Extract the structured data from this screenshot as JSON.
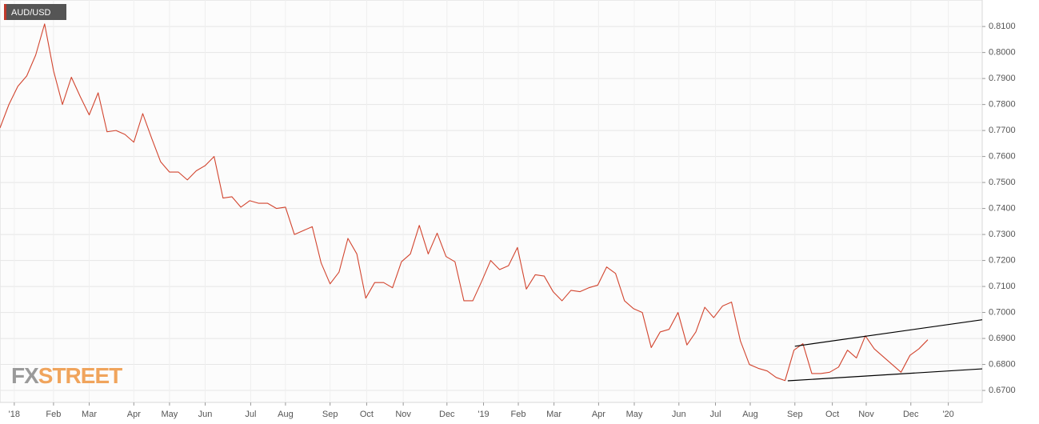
{
  "chart_data": {
    "type": "line",
    "x": [
      0,
      1,
      2,
      3,
      4,
      5,
      6,
      7,
      8,
      9,
      10,
      11,
      12,
      13,
      14,
      15,
      16,
      17,
      18,
      19,
      20,
      21,
      22,
      23,
      24,
      25,
      26,
      27,
      28,
      29,
      30,
      31,
      32,
      33,
      34,
      35,
      36,
      37,
      38,
      39,
      40,
      41,
      42,
      43,
      44,
      45,
      46,
      47,
      48,
      49,
      50,
      51,
      52,
      53,
      54,
      55,
      56,
      57,
      58,
      59,
      60,
      61,
      62,
      63,
      64,
      65,
      66,
      67,
      68,
      69,
      70,
      71,
      72,
      73,
      74,
      75,
      76,
      77,
      78,
      79,
      80,
      81,
      82,
      83,
      84,
      85,
      86,
      87,
      88,
      89,
      90,
      91,
      92,
      93,
      94,
      95,
      96,
      97,
      98,
      99,
      100,
      101,
      102,
      103,
      104
    ],
    "series": [
      {
        "name": "AUD/USD",
        "color": "#d2452f",
        "values": [
          0.771,
          0.78,
          0.787,
          0.791,
          0.799,
          0.811,
          0.793,
          0.78,
          0.7905,
          0.783,
          0.776,
          0.7845,
          0.7695,
          0.77,
          0.7685,
          0.7655,
          0.7765,
          0.767,
          0.758,
          0.754,
          0.754,
          0.751,
          0.7545,
          0.7565,
          0.76,
          0.744,
          0.7445,
          0.7405,
          0.743,
          0.742,
          0.742,
          0.74,
          0.7405,
          0.73,
          0.7315,
          0.733,
          0.719,
          0.711,
          0.7155,
          0.7285,
          0.7225,
          0.7055,
          0.7115,
          0.7115,
          0.7095,
          0.7195,
          0.7225,
          0.7335,
          0.7225,
          0.7305,
          0.7215,
          0.7195,
          0.7045,
          0.7045,
          0.712,
          0.72,
          0.7165,
          0.718,
          0.725,
          0.709,
          0.7145,
          0.714,
          0.708,
          0.7045,
          0.7085,
          0.708,
          0.7095,
          0.7105,
          0.7175,
          0.715,
          0.7045,
          0.7015,
          0.7,
          0.6865,
          0.6925,
          0.6935,
          0.7,
          0.6875,
          0.6925,
          0.702,
          0.698,
          0.7025,
          0.704,
          0.689,
          0.68,
          0.6785,
          0.6775,
          0.675,
          0.6738,
          0.6855,
          0.688,
          0.6765,
          0.6765,
          0.677,
          0.679,
          0.6855,
          0.6825,
          0.691,
          0.686,
          0.683,
          0.68,
          0.677,
          0.6835,
          0.686,
          0.6895
        ]
      }
    ],
    "trendlines": [
      {
        "color": "#000000",
        "x": [
          89.1,
          110.1
        ],
        "values": [
          0.687,
          0.6972
        ]
      },
      {
        "color": "#000000",
        "x": [
          88.3,
          110.1
        ],
        "values": [
          0.6737,
          0.6783
        ]
      }
    ],
    "xlim": [
      0,
      110.1
    ],
    "xticks": [
      {
        "value": 1.6,
        "label": "'18"
      },
      {
        "value": 6.0,
        "label": "Feb"
      },
      {
        "value": 10.0,
        "label": "Mar"
      },
      {
        "value": 15.0,
        "label": "Apr"
      },
      {
        "value": 19.0,
        "label": "May"
      },
      {
        "value": 23.0,
        "label": "Jun"
      },
      {
        "value": 28.1,
        "label": "Jul"
      },
      {
        "value": 32.0,
        "label": "Aug"
      },
      {
        "value": 37.0,
        "label": "Sep"
      },
      {
        "value": 41.1,
        "label": "Oct"
      },
      {
        "value": 45.2,
        "label": "Nov"
      },
      {
        "value": 50.1,
        "label": "Dec"
      },
      {
        "value": 54.2,
        "label": "'19"
      },
      {
        "value": 58.1,
        "label": "Feb"
      },
      {
        "value": 62.1,
        "label": "Mar"
      },
      {
        "value": 67.1,
        "label": "Apr"
      },
      {
        "value": 71.1,
        "label": "May"
      },
      {
        "value": 76.1,
        "label": "Jun"
      },
      {
        "value": 80.2,
        "label": "Jul"
      },
      {
        "value": 84.1,
        "label": "Aug"
      },
      {
        "value": 89.1,
        "label": "Sep"
      },
      {
        "value": 93.3,
        "label": "Oct"
      },
      {
        "value": 97.1,
        "label": "Nov"
      },
      {
        "value": 102.1,
        "label": "Dec"
      },
      {
        "value": 106.3,
        "label": "'20"
      }
    ],
    "ylim": [
      0.6654,
      0.8202
    ],
    "yticks": [
      {
        "value": 0.67,
        "label": "0.6700"
      },
      {
        "value": 0.68,
        "label": "0.6800"
      },
      {
        "value": 0.69,
        "label": "0.6900"
      },
      {
        "value": 0.7,
        "label": "0.7000"
      },
      {
        "value": 0.71,
        "label": "0.7100"
      },
      {
        "value": 0.72,
        "label": "0.7200"
      },
      {
        "value": 0.73,
        "label": "0.7300"
      },
      {
        "value": 0.74,
        "label": "0.7400"
      },
      {
        "value": 0.75,
        "label": "0.7500"
      },
      {
        "value": 0.76,
        "label": "0.7600"
      },
      {
        "value": 0.77,
        "label": "0.7700"
      },
      {
        "value": 0.78,
        "label": "0.7800"
      },
      {
        "value": 0.79,
        "label": "0.7900"
      },
      {
        "value": 0.8,
        "label": "0.8000"
      },
      {
        "value": 0.81,
        "label": "0.8100"
      }
    ],
    "grid": true
  },
  "logo": {
    "prefix": "FX",
    "suffix": "STREET"
  }
}
